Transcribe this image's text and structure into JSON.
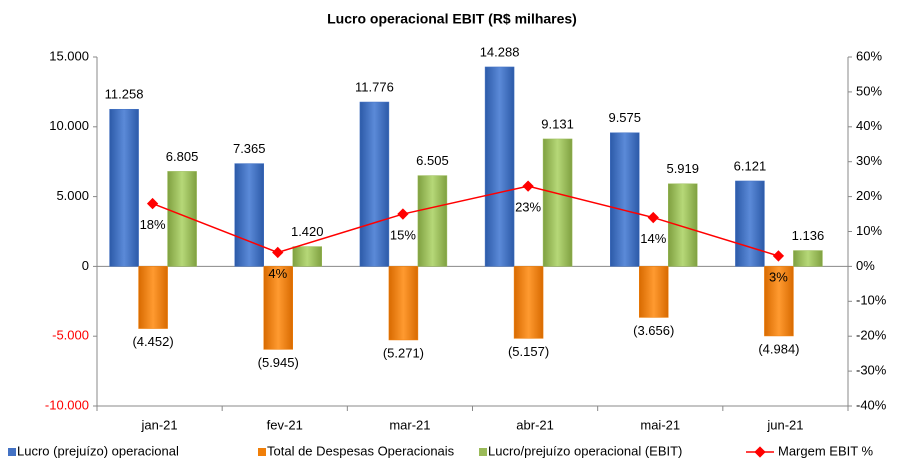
{
  "chart_data": {
    "type": "bar",
    "title": "Lucro operacional EBIT (R$ milhares)",
    "categories": [
      "jan-21",
      "fev-21",
      "mar-21",
      "abr-21",
      "mai-21",
      "jun-21"
    ],
    "series": [
      {
        "name": "Lucro (prejuízo) operacional",
        "color": "#4472c4",
        "type": "bar",
        "values": [
          11258,
          7365,
          11776,
          14288,
          9575,
          6121
        ],
        "value_labels": [
          "11.258",
          "7.365",
          "11.776",
          "14.288",
          "9.575",
          "6.121"
        ]
      },
      {
        "name": "Total de Despesas Operacionais",
        "color": "#f07f09",
        "type": "bar",
        "values": [
          -4452,
          -5945,
          -5271,
          -5157,
          -3656,
          -4984
        ],
        "value_labels": [
          "(4.452)",
          "(5.945)",
          "(5.271)",
          "(5.157)",
          "(3.656)",
          "(4.984)"
        ]
      },
      {
        "name": "Lucro/prejuízo operacional (EBIT)",
        "color": "#9bbb59",
        "type": "bar",
        "values": [
          6805,
          1420,
          6505,
          9131,
          5919,
          1136
        ],
        "value_labels": [
          "6.805",
          "1.420",
          "6.505",
          "9.131",
          "5.919",
          "1.136"
        ]
      },
      {
        "name": "Margem EBIT %",
        "color": "#ff0000",
        "type": "line",
        "axis": "y2",
        "values": [
          18,
          4,
          15,
          23,
          14,
          3
        ],
        "value_labels": [
          "18%",
          "4%",
          "15%",
          "23%",
          "14%",
          "3%"
        ]
      }
    ],
    "ylim": [
      -10000,
      15000
    ],
    "yticks": [
      {
        "value": -10000,
        "label": "-10.000"
      },
      {
        "value": -5000,
        "label": "-5.000"
      },
      0,
      {
        "value": 5000,
        "label": "5.000"
      },
      {
        "value": 10000,
        "label": "10.000"
      },
      {
        "value": 15000,
        "label": "15.000"
      }
    ],
    "y2lim": [
      -40,
      60
    ],
    "y2ticks": [
      {
        "value": -40,
        "label": "-40%"
      },
      {
        "value": -30,
        "label": "-30%"
      },
      {
        "value": -20,
        "label": "-20%"
      },
      {
        "value": -10,
        "label": "-10%"
      },
      {
        "value": 0,
        "label": "0%"
      },
      {
        "value": 10,
        "label": "10%"
      },
      {
        "value": 20,
        "label": "20%"
      },
      {
        "value": 30,
        "label": "30%"
      },
      {
        "value": 40,
        "label": "40%"
      },
      {
        "value": 50,
        "label": "50%"
      },
      {
        "value": 60,
        "label": "60%"
      }
    ],
    "grid": false,
    "legend": "bottom"
  }
}
